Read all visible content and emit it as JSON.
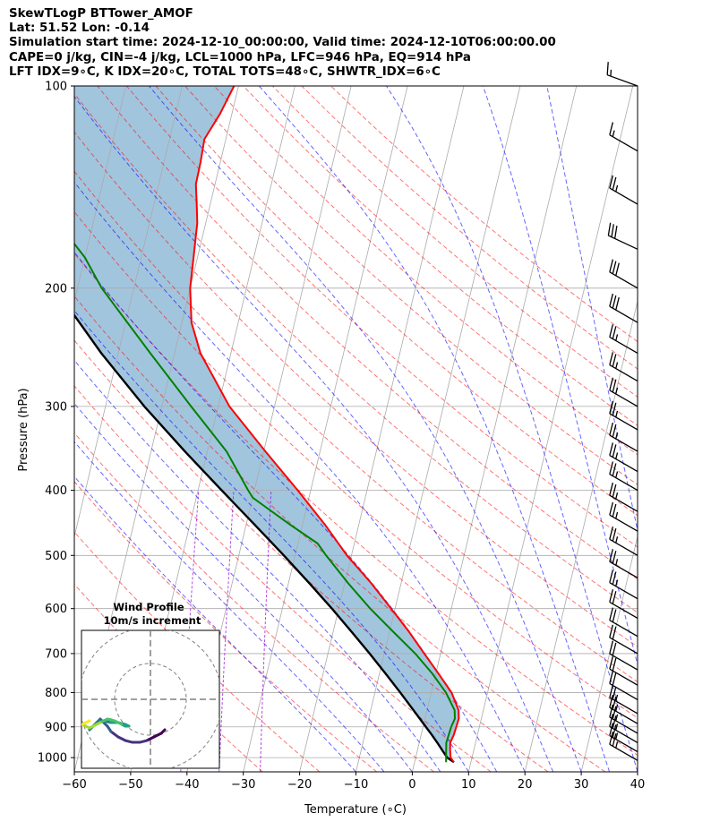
{
  "header": {
    "line1": "SkewTLogP BTTower_AMOF",
    "line2": "Lat: 51.52   Lon: -0.14",
    "line3": "Simulation start time: 2024-12-10_00:00:00, Valid time: 2024-12-10T06:00:00.00",
    "line4": "CAPE=0 j/kg, CIN=-4 j/kg, LCL=1000 hPa, LFC=946 hPa, EQ=914 hPa",
    "line5": "LFT IDX=9∘C, K IDX=20∘C, TOTAL TOTS=48∘C, SHWTR_IDX=6∘C"
  },
  "chart_data": [
    {
      "type": "line",
      "subtype": "skew-t log-p",
      "xlabel": "Temperature (∘C)",
      "ylabel": "Pressure (hPa)",
      "xlim": [
        -60,
        40
      ],
      "ylim": [
        1050,
        100
      ],
      "y_scale": "log",
      "x_ticks": [
        -60,
        -50,
        -40,
        -30,
        -20,
        -10,
        0,
        10,
        20,
        30,
        40
      ],
      "y_ticks": [
        100,
        200,
        300,
        400,
        500,
        600,
        700,
        800,
        900,
        1000
      ],
      "grid": true,
      "colors": {
        "temperature": "#ff0000",
        "dewpoint": "#008000",
        "parcel": "#000000",
        "dry_adiabats": "#ff0000",
        "moist_adiabats": "#0000ff",
        "mixing_ratio": "#9400d3",
        "fill": "#a2c5de",
        "isotherms": "#aaaaaa",
        "barbs": "#000000"
      },
      "series": [
        {
          "key": "temperature",
          "p": [
            1016,
            1000,
            975,
            950,
            925,
            900,
            875,
            850,
            800,
            750,
            700,
            650,
            600,
            550,
            500,
            450,
            400,
            350,
            300,
            250,
            225,
            200,
            180,
            160,
            150,
            140,
            130,
            120,
            110,
            100
          ],
          "t": [
            7.0,
            6.2,
            5.8,
            5.5,
            5.8,
            5.9,
            6.0,
            5.6,
            3.6,
            0.5,
            -2.9,
            -6.5,
            -10.7,
            -15.3,
            -20.8,
            -26.0,
            -32.3,
            -39.7,
            -48.0,
            -55.4,
            -58.3,
            -60.0,
            -60.7,
            -61.5,
            -62.4,
            -63.4,
            -63.5,
            -63.8,
            -62.1,
            -60.8
          ]
        },
        {
          "key": "dewpoint",
          "p": [
            1016,
            1000,
            975,
            950,
            925,
            900,
            875,
            850,
            800,
            750,
            700,
            650,
            600,
            550,
            500,
            480,
            450,
            420,
            410,
            400,
            350,
            300,
            250,
            200,
            180,
            170,
            160,
            150,
            140,
            130,
            120,
            110,
            100
          ],
          "t": [
            5.6,
            5.4,
            5.1,
            4.8,
            4.9,
            5.0,
            5.3,
            4.9,
            2.6,
            -0.6,
            -4.5,
            -9.3,
            -14.4,
            -19.4,
            -24.5,
            -26.5,
            -32.2,
            -38.0,
            -40.0,
            -41.1,
            -46.6,
            -54.8,
            -64.3,
            -75.7,
            -80.0,
            -83.0,
            -85.6,
            -87.5,
            -89.0,
            -89.0,
            -89.8,
            -91.0,
            -93.0
          ]
        },
        {
          "key": "parcel",
          "p": [
            1016,
            1000,
            975,
            950,
            925,
            900,
            850,
            800,
            750,
            700,
            650,
            600,
            550,
            500,
            450,
            400,
            350,
            300,
            250,
            200,
            150,
            100
          ],
          "t": [
            7.0,
            5.6,
            4.4,
            3.2,
            1.9,
            0.5,
            -2.4,
            -5.5,
            -8.9,
            -12.6,
            -16.7,
            -21.2,
            -26.3,
            -32.0,
            -38.5,
            -45.8,
            -54.0,
            -63.1,
            -73.0,
            -84.0,
            -97.5,
            -115.0
          ]
        }
      ],
      "barbs": {
        "p": [
          100,
          125,
          150,
          175,
          200,
          225,
          250,
          275,
          300,
          325,
          350,
          375,
          400,
          430,
          460,
          500,
          540,
          580,
          620,
          660,
          700,
          740,
          780,
          820,
          860,
          890,
          920,
          950,
          980,
          1010
        ],
        "speed_kt": [
          15,
          15,
          25,
          30,
          30,
          30,
          25,
          25,
          25,
          25,
          25,
          25,
          25,
          25,
          25,
          25,
          25,
          25,
          20,
          20,
          20,
          20,
          20,
          20,
          25,
          25,
          25,
          25,
          25,
          25
        ],
        "dir_deg": [
          290,
          300,
          300,
          295,
          300,
          300,
          300,
          300,
          300,
          300,
          300,
          300,
          300,
          300,
          300,
          300,
          300,
          300,
          300,
          300,
          300,
          300,
          300,
          300,
          300,
          300,
          300,
          300,
          300,
          300
        ]
      }
    },
    {
      "type": "line",
      "subtype": "hodograph",
      "title": "Wind Profile",
      "subtitle": "10m/s increment",
      "rings": [
        10,
        20,
        30
      ],
      "xlim": [
        -25,
        25
      ],
      "ylim": [
        -25,
        25
      ],
      "u": [
        4,
        3,
        1,
        -1,
        -3,
        -5,
        -7,
        -9,
        -11,
        -12,
        -13,
        -14,
        -15,
        -16,
        -17,
        -16,
        -15,
        -14,
        -13,
        -11,
        -9,
        -7,
        -6,
        -7,
        -8,
        -9,
        -10,
        -11,
        -12,
        -13,
        -14,
        -15,
        -16,
        -17,
        -18,
        -19,
        -18,
        -17
      ],
      "v": [
        -3,
        -4,
        -5,
        -6,
        -6.5,
        -6.5,
        -6,
        -5,
        -3.5,
        -2,
        -1,
        0,
        -1,
        -2,
        -3,
        -2,
        -1,
        -0.5,
        -0.5,
        -1,
        -1,
        -1.5,
        -2,
        -2,
        -1.5,
        -1,
        -0.5,
        -0.2,
        0,
        -0.5,
        -1,
        -1.5,
        -2,
        -2.5,
        -2,
        -1.5,
        -1,
        -0.5
      ],
      "colormap": "viridis"
    }
  ]
}
